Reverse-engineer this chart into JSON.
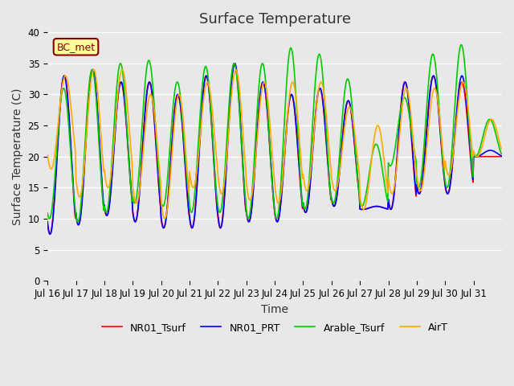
{
  "title": "Surface Temperature",
  "xlabel": "Time",
  "ylabel": "Surface Temperature (C)",
  "ylim": [
    0,
    40
  ],
  "yticks": [
    0,
    5,
    10,
    15,
    20,
    25,
    30,
    35,
    40
  ],
  "xtick_labels": [
    "Jul 16",
    "Jul 17",
    "Jul 18",
    "Jul 19",
    "Jul 20",
    "Jul 21",
    "Jul 22",
    "Jul 23",
    "Jul 24",
    "Jul 25",
    "Jul 26",
    "Jul 27",
    "Jul 28",
    "Jul 29",
    "Jul 30",
    "Jul 31"
  ],
  "annotation_text": "BC_met",
  "series_colors": {
    "NR01_Tsurf": "#ff0000",
    "NR01_PRT": "#0000ff",
    "Arable_Tsurf": "#00cc00",
    "AirT": "#ffaa00"
  },
  "series_linewidth": 1.2,
  "bg_color": "#e8e8e8",
  "plot_bg_color": "#e8e8e8",
  "grid_color": "#ffffff",
  "title_fontsize": 13,
  "label_fontsize": 10,
  "tick_fontsize": 8.5,
  "legend_fontsize": 9,
  "n_points_per_day": 48,
  "n_days": 16,
  "day_peaks_NR01_Tsurf": [
    33,
    34,
    32,
    32,
    30,
    33,
    35,
    32,
    30,
    31,
    29,
    12,
    32,
    33,
    32,
    20
  ],
  "day_mins_NR01_Tsurf": [
    7.5,
    9,
    10.5,
    9.5,
    8.5,
    8.5,
    8.5,
    9.5,
    9.5,
    11,
    12,
    11.5,
    11.5,
    14,
    14,
    20
  ],
  "day_peaks_NR01_PRT": [
    33,
    34,
    32,
    32,
    30,
    33,
    35,
    32,
    30,
    31,
    29,
    12,
    32,
    33,
    33,
    21
  ],
  "day_mins_NR01_PRT": [
    7.5,
    9,
    10.5,
    9.5,
    8.5,
    8.5,
    8.5,
    9.5,
    9.5,
    11,
    12,
    11.5,
    11.5,
    14,
    14,
    20
  ],
  "day_peaks_Arable": [
    31,
    34,
    35,
    35.5,
    32,
    34.5,
    35,
    35,
    37.5,
    36.5,
    32.5,
    22,
    29.5,
    36.5,
    38,
    26
  ],
  "day_mins_Arable": [
    10,
    9.5,
    11,
    12.5,
    12,
    11,
    11,
    10,
    10,
    11.5,
    12.5,
    12,
    18.5,
    15,
    15,
    20
  ],
  "day_peaks_AirT": [
    33,
    34,
    34,
    30,
    30,
    32,
    34,
    32,
    32,
    32,
    28,
    25,
    31,
    31,
    32,
    26
  ],
  "day_mins_AirT": [
    18,
    13.5,
    15,
    12.5,
    10,
    15,
    14,
    13,
    12.5,
    14.5,
    14.5,
    11.5,
    14,
    14.5,
    17,
    20
  ]
}
